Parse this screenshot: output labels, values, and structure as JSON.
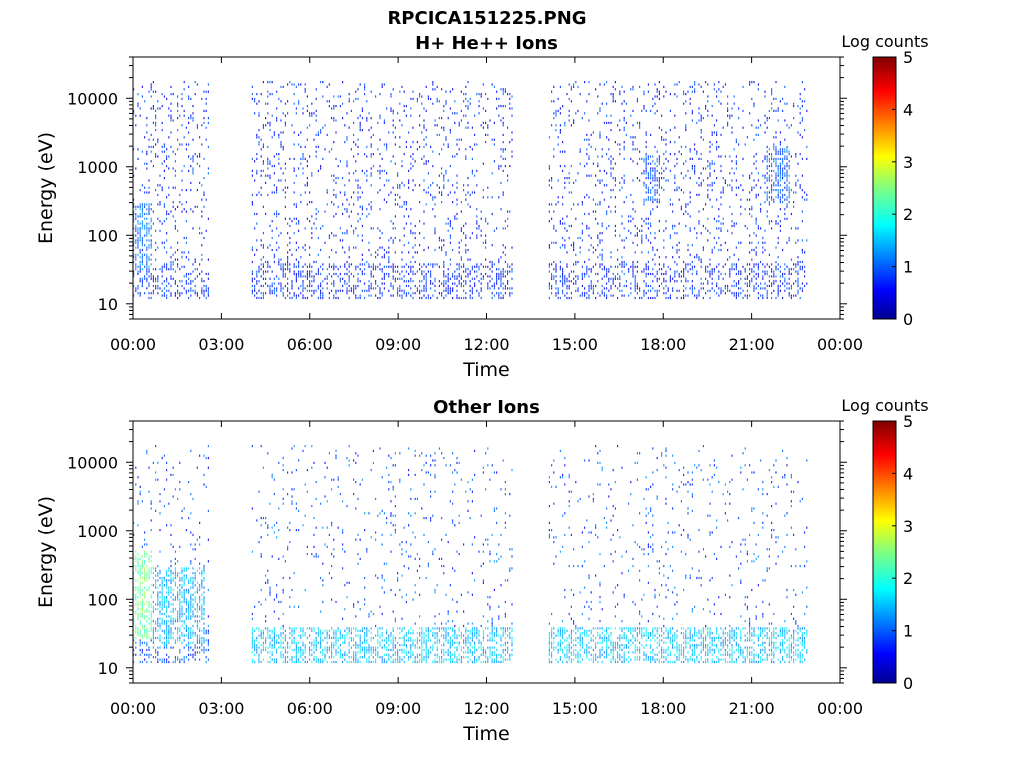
{
  "figure": {
    "title": "RPCICA151225.PNG"
  },
  "chart_data": [
    {
      "type": "heatmap",
      "title": "H+ He++ Ions",
      "xlabel": "Time",
      "ylabel": "Energy (eV)",
      "x_ticks": [
        "00:00",
        "03:00",
        "06:00",
        "09:00",
        "12:00",
        "15:00",
        "18:00",
        "21:00",
        "00:00"
      ],
      "xlim_hours": [
        0,
        24
      ],
      "y_scale": "log",
      "y_ticks": [
        "10",
        "100",
        "1000",
        "10000"
      ],
      "ylim": [
        6,
        40000
      ],
      "colorbar": {
        "label": "Log counts",
        "range": [
          0,
          5
        ],
        "ticks": [
          "0",
          "1",
          "2",
          "3",
          "4",
          "5"
        ]
      },
      "data_gaps_hours": [
        [
          2.6,
          4.0
        ],
        [
          12.9,
          14.1
        ],
        [
          22.9,
          24
        ]
      ],
      "typical_log_counts": 0.8,
      "peak_regions": [
        {
          "time_hours": [
            0.0,
            0.6
          ],
          "energy_ev": [
            30,
            300
          ],
          "log_counts": 1.2
        },
        {
          "time_hours": [
            21.5,
            22.3
          ],
          "energy_ev": [
            300,
            2000
          ],
          "log_counts": 1.1
        },
        {
          "time_hours": [
            17.3,
            17.9
          ],
          "energy_ev": [
            300,
            1500
          ],
          "log_counts": 1.0
        }
      ],
      "grid": false
    },
    {
      "type": "heatmap",
      "title": "Other Ions",
      "xlabel": "Time",
      "ylabel": "Energy (eV)",
      "x_ticks": [
        "00:00",
        "03:00",
        "06:00",
        "09:00",
        "12:00",
        "15:00",
        "18:00",
        "21:00",
        "00:00"
      ],
      "xlim_hours": [
        0,
        24
      ],
      "y_scale": "log",
      "y_ticks": [
        "10",
        "100",
        "1000",
        "10000"
      ],
      "ylim": [
        6,
        40000
      ],
      "colorbar": {
        "label": "Log counts",
        "range": [
          0,
          5
        ],
        "ticks": [
          "0",
          "1",
          "2",
          "3",
          "4",
          "5"
        ]
      },
      "data_gaps_hours": [
        [
          2.6,
          4.0
        ],
        [
          12.9,
          14.1
        ],
        [
          22.9,
          24
        ]
      ],
      "typical_log_counts": 1.0,
      "peak_regions": [
        {
          "time_hours": [
            0.0,
            0.6
          ],
          "energy_ev": [
            25,
            500
          ],
          "log_counts": 2.4
        },
        {
          "time_hours": [
            0.6,
            2.4
          ],
          "energy_ev": [
            20,
            300
          ],
          "log_counts": 1.5
        },
        {
          "time_hours": [
            4.0,
            22.9
          ],
          "energy_ev": [
            12,
            40
          ],
          "log_counts": 1.6
        }
      ],
      "grid": false
    }
  ]
}
